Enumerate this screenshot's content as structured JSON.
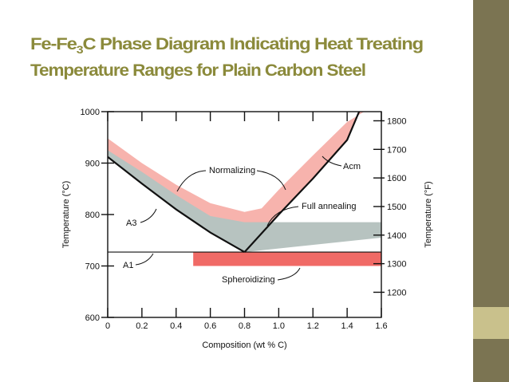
{
  "chart_data": {
    "type": "phase-diagram",
    "title_parts": [
      "Fe-Fe",
      "3",
      "C  Phase Diagram Indicating Heat Treating"
    ],
    "title_line2": "Temperature Ranges for Plain Carbon Steel",
    "x_label": "Composition (wt % C)",
    "y_label": "Temperature (°C)",
    "y2_label": "Temperature (°F)",
    "xlim": [
      0,
      1.6
    ],
    "xticks": [
      0,
      0.2,
      0.4,
      0.6,
      0.8,
      {
        "value": 1,
        "label": "1.0"
      },
      1.2,
      1.4,
      1.6
    ],
    "ylim": [
      600,
      1000
    ],
    "yticks": [
      600,
      700,
      800,
      900,
      1000
    ],
    "y2lim": [
      1112,
      1832
    ],
    "y2ticks": [
      1200,
      1300,
      1400,
      1500,
      1600,
      1700,
      1800
    ],
    "regions": [
      {
        "label": "Normalizing",
        "color": "#f7b3ad",
        "x": [
          0,
          0.2,
          0.4,
          0.6,
          0.8,
          0.9,
          1.0,
          1.2,
          1.4,
          1.5,
          1.47,
          1.4,
          1.2,
          1.0,
          0.8,
          0.6,
          0.4,
          0.2,
          0
        ],
        "y": [
          948,
          900,
          858,
          822,
          805,
          812,
          848,
          915,
          980,
          1000,
          1000,
          945,
          870,
          800,
          727,
          765,
          810,
          860,
          912
        ]
      },
      {
        "label": "Full annealing",
        "color": "#b7c3c0",
        "x": [
          0,
          0.2,
          0.4,
          0.6,
          0.8,
          1.6,
          1.6,
          0.8,
          0.6,
          0.4,
          0.2,
          0
        ],
        "y": [
          925,
          883,
          838,
          797,
          785,
          785,
          755,
          727,
          765,
          810,
          860,
          912
        ]
      },
      {
        "label": "Spheroidizing",
        "color": "#f06a66",
        "x": [
          0.5,
          1.6,
          1.6,
          0.5
        ],
        "y": [
          727,
          727,
          700,
          700
        ]
      }
    ],
    "lines": [
      {
        "label": "A3",
        "x": [
          0,
          0.2,
          0.4,
          0.6,
          0.8
        ],
        "y": [
          912,
          860,
          810,
          765,
          727
        ]
      },
      {
        "label": "Acm",
        "x": [
          0.8,
          1.0,
          1.2,
          1.4,
          1.47
        ],
        "y": [
          727,
          800,
          870,
          945,
          1000
        ]
      },
      {
        "label": "A1",
        "x": [
          0,
          1.6
        ],
        "y": [
          727,
          727
        ]
      }
    ]
  }
}
